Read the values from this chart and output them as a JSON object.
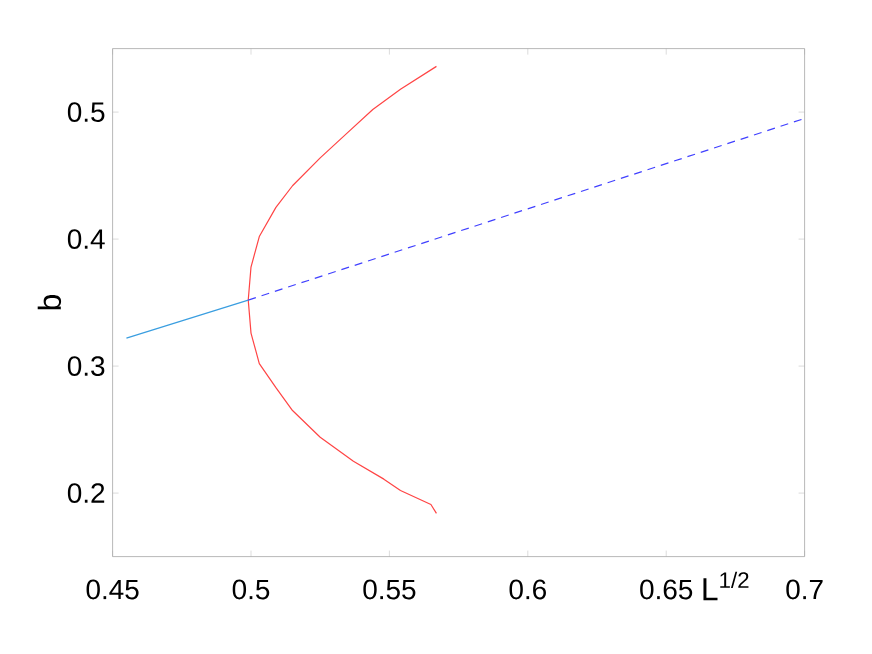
{
  "chart_data": {
    "type": "line",
    "xlabel": "L$^{1/2}$",
    "ylabel": "b",
    "xlim": [
      0.45,
      0.7
    ],
    "ylim": [
      0.15,
      0.55
    ],
    "xticks": [
      0.45,
      0.5,
      0.55,
      0.6,
      0.65,
      0.7
    ],
    "yticks": [
      0.2,
      0.3,
      0.4,
      0.5
    ],
    "marker": "none",
    "series": [
      {
        "color": "#ff4444",
        "line_style": "solid",
        "x": [
          0.567,
          0.554,
          0.544,
          0.535,
          0.525,
          0.515,
          0.509,
          0.503,
          0.5,
          0.499,
          0.5,
          0.503,
          0.509,
          0.515,
          0.525,
          0.537,
          0.548,
          0.554,
          0.565,
          0.567
        ],
        "values": [
          0.536,
          0.518,
          0.502,
          0.484,
          0.464,
          0.442,
          0.425,
          0.402,
          0.378,
          0.352,
          0.326,
          0.302,
          0.283,
          0.265,
          0.244,
          0.225,
          0.211,
          0.202,
          0.191,
          0.184
        ]
      },
      {
        "color": "#3a9ee0",
        "line_style": "solid",
        "x": [
          0.455,
          0.499
        ],
        "values": [
          0.322,
          0.352
        ]
      },
      {
        "color": "#4040ff",
        "line_style": "dashed",
        "x": [
          0.499,
          0.7
        ],
        "values": [
          0.352,
          0.495
        ]
      }
    ]
  }
}
